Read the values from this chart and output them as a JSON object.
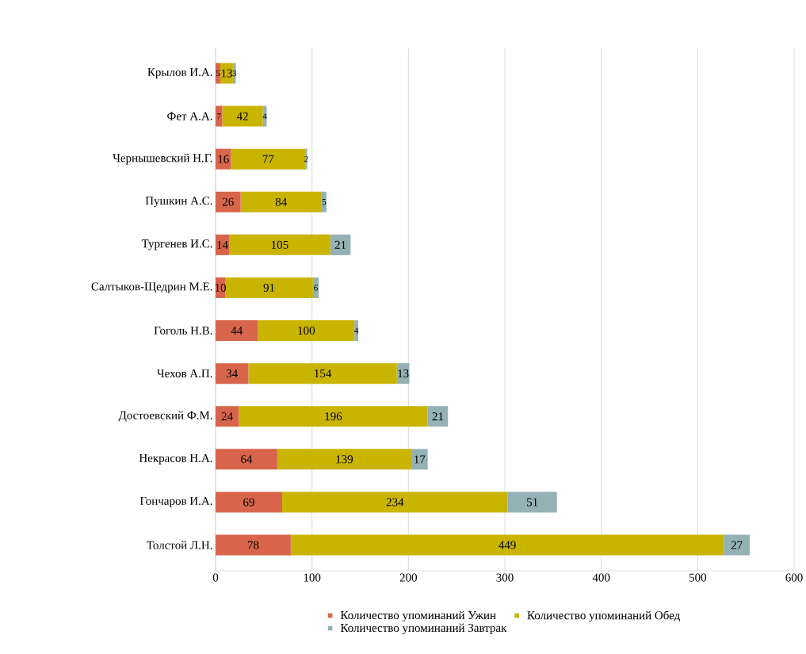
{
  "chart_data": {
    "type": "bar",
    "orientation": "horizontal",
    "stacked": true,
    "categories": [
      "Крылов И.А.",
      "Фет А.А.",
      "Чернышевский Н.Г.",
      "Пушкин А.С.",
      "Тургенев И.С.",
      "Салтыков-Щедрин М.Е.",
      "Гоголь Н.В.",
      "Чехов А.П.",
      "Достоевский Ф.М.",
      "Некрасов Н.А.",
      "Гончаров И.А.",
      "Толстой Л.Н."
    ],
    "series": [
      {
        "name": "Количество упоминаний Ужин",
        "color": "#d8654b",
        "values": [
          5,
          7,
          16,
          26,
          14,
          10,
          44,
          34,
          24,
          64,
          69,
          78
        ]
      },
      {
        "name": "Количество упоминаний Обед",
        "color": "#c9b400",
        "values": [
          13,
          42,
          77,
          84,
          105,
          91,
          100,
          154,
          196,
          139,
          234,
          449
        ]
      },
      {
        "name": "Количество упоминаний Завтрак",
        "color": "#94b2b5",
        "values": [
          3,
          4,
          2,
          5,
          21,
          6,
          4,
          13,
          21,
          17,
          51,
          27
        ]
      }
    ],
    "xlim": [
      0,
      600
    ],
    "xticks": [
      0,
      100,
      200,
      300,
      400,
      500,
      600
    ],
    "grid": "x",
    "legend": "bottom",
    "data_labels": true
  }
}
